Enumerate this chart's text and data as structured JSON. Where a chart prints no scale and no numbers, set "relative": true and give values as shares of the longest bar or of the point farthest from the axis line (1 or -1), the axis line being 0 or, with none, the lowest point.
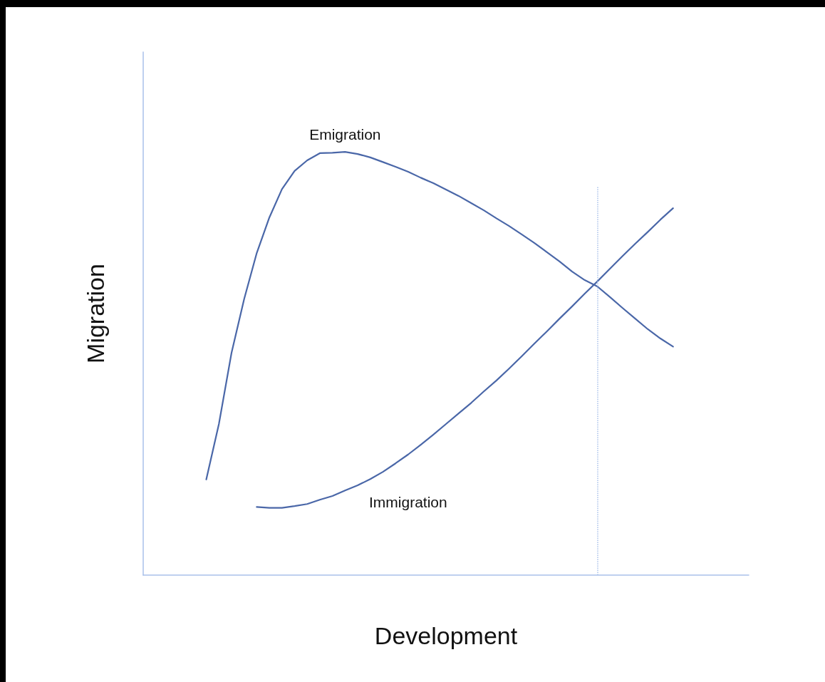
{
  "chart_data": {
    "type": "line",
    "relative": true,
    "xlabel": "Development",
    "ylabel": "Migration",
    "grid": false,
    "legend": false,
    "marker": "none",
    "line_style": "solid",
    "categories": [
      null,
      null,
      null,
      null,
      null,
      null,
      null,
      null,
      null,
      null,
      null,
      null,
      null,
      null,
      null,
      null,
      null,
      null,
      null,
      null,
      null,
      null,
      null,
      null,
      null,
      null,
      null,
      null,
      null,
      null,
      null,
      null,
      null,
      null,
      null,
      null,
      null,
      null,
      null,
      null,
      null,
      null,
      null,
      null,
      null,
      null,
      null,
      null,
      null
    ],
    "series": [
      {
        "name": "Emigration",
        "color": "#4a67a8",
        "values": [
          null,
          null,
          null,
          null,
          null,
          0.226,
          0.357,
          0.525,
          0.652,
          0.761,
          0.845,
          0.912,
          0.955,
          0.98,
          0.997,
          0.998,
          1,
          0.995,
          0.987,
          0.976,
          0.965,
          0.953,
          0.939,
          0.926,
          0.911,
          0.896,
          0.879,
          0.862,
          0.843,
          0.825,
          0.805,
          0.785,
          0.763,
          0.741,
          0.717,
          0.697,
          0.682,
          0.657,
          0.631,
          0.606,
          0.581,
          0.559,
          0.54,
          null,
          null,
          null,
          null,
          null,
          null
        ]
      },
      {
        "name": "Immigration",
        "color": "#4a67a8",
        "values": [
          null,
          null,
          null,
          null,
          null,
          null,
          null,
          null,
          null,
          0.161,
          0.159,
          0.159,
          0.163,
          0.168,
          0.178,
          0.187,
          0.2,
          0.212,
          0.227,
          0.244,
          0.264,
          0.285,
          0.308,
          0.332,
          0.357,
          0.382,
          0.407,
          0.434,
          0.46,
          0.488,
          0.517,
          0.547,
          0.576,
          0.606,
          0.635,
          0.665,
          0.694,
          0.724,
          0.754,
          0.783,
          0.811,
          0.84,
          0.867,
          null,
          null,
          null,
          null,
          null,
          null
        ]
      }
    ]
  }
}
